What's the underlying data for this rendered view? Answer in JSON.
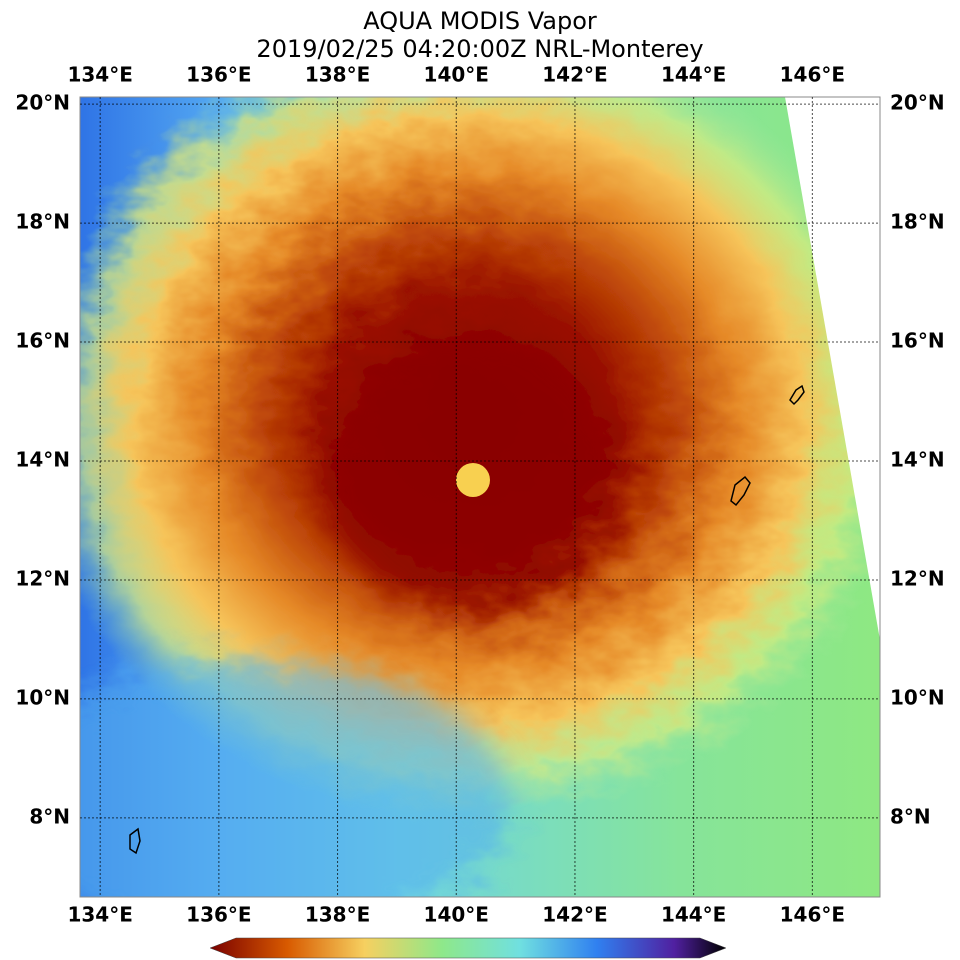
{
  "title": "AQUA MODIS Vapor",
  "subtitle": "2019/02/25 04:20:00Z NRL-Monterey",
  "map": {
    "lon_range": [
      133.66,
      147.14
    ],
    "lat_range": [
      6.67,
      20.12
    ],
    "lon_ticks": [
      {
        "value": 134,
        "label": "134°E"
      },
      {
        "value": 136,
        "label": "136°E"
      },
      {
        "value": 138,
        "label": "138°E"
      },
      {
        "value": 140,
        "label": "140°E"
      },
      {
        "value": 142,
        "label": "142°E"
      },
      {
        "value": 144,
        "label": "144°E"
      },
      {
        "value": 146,
        "label": "146°E"
      }
    ],
    "lat_ticks": [
      {
        "value": 8,
        "label": "8°N"
      },
      {
        "value": 10,
        "label": "10°N"
      },
      {
        "value": 12,
        "label": "12°N"
      },
      {
        "value": 14,
        "label": "14°N"
      },
      {
        "value": 16,
        "label": "16°N"
      },
      {
        "value": 18,
        "label": "18°N"
      },
      {
        "value": 20,
        "label": "20°N"
      }
    ]
  }
}
